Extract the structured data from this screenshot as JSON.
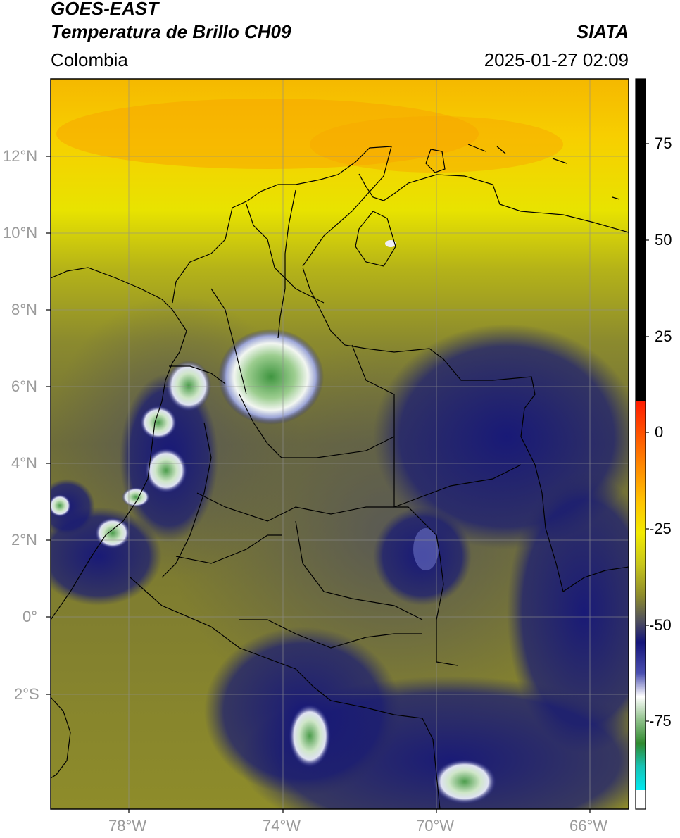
{
  "header": {
    "satellite": "GOES-EAST",
    "product": "Temperatura de Brillo CH09",
    "region": "Colombia",
    "source": "SIATA",
    "timestamp": "2025-01-27 02:09"
  },
  "axes": {
    "lat_labels": [
      "12°N",
      "10°N",
      "8°N",
      "6°N",
      "4°N",
      "2°N",
      "0°",
      "2°S"
    ],
    "lon_labels": [
      "78°W",
      "74°W",
      "70°W",
      "66°W"
    ]
  },
  "colorbar": {
    "labels": [
      "75",
      "50",
      "25",
      "0",
      "-25",
      "-50",
      "-75"
    ],
    "colors": {
      "black": "#000000",
      "red": "#ff1a00",
      "orange": "#ff9500",
      "yellow": "#f6ea00",
      "olive": "#8e8c2c",
      "gray": "#4d4d52",
      "navy": "#15167a",
      "white": "#ffffff",
      "green": "#2f8a2f",
      "teal": "#16c3b5",
      "cyan": "#00e8f0"
    }
  }
}
